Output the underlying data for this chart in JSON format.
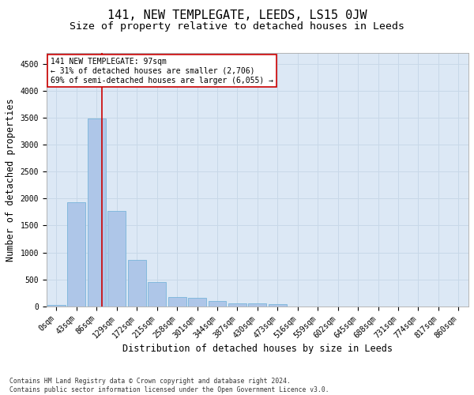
{
  "title": "141, NEW TEMPLEGATE, LEEDS, LS15 0JW",
  "subtitle": "Size of property relative to detached houses in Leeds",
  "xlabel": "Distribution of detached houses by size in Leeds",
  "ylabel": "Number of detached properties",
  "footnote": "Contains HM Land Registry data © Crown copyright and database right 2024.\nContains public sector information licensed under the Open Government Licence v3.0.",
  "bar_labels": [
    "0sqm",
    "43sqm",
    "86sqm",
    "129sqm",
    "172sqm",
    "215sqm",
    "258sqm",
    "301sqm",
    "344sqm",
    "387sqm",
    "430sqm",
    "473sqm",
    "516sqm",
    "559sqm",
    "602sqm",
    "645sqm",
    "688sqm",
    "731sqm",
    "774sqm",
    "817sqm",
    "860sqm"
  ],
  "bar_values": [
    30,
    1930,
    3490,
    1770,
    855,
    445,
    175,
    165,
    95,
    60,
    50,
    35,
    0,
    0,
    0,
    0,
    0,
    0,
    0,
    0,
    0
  ],
  "bar_color": "#aec6e8",
  "bar_edge_color": "#6aaed6",
  "vline_x": 2.27,
  "vline_color": "#cc0000",
  "annotation_line1": "141 NEW TEMPLEGATE: 97sqm",
  "annotation_line2": "← 31% of detached houses are smaller (2,706)",
  "annotation_line3": "69% of semi-detached houses are larger (6,055) →",
  "annotation_box_color": "#cc0000",
  "annotation_bg": "#ffffff",
  "ylim": [
    0,
    4700
  ],
  "yticks": [
    0,
    500,
    1000,
    1500,
    2000,
    2500,
    3000,
    3500,
    4000,
    4500
  ],
  "grid_color": "#c8d8e8",
  "bg_color": "#dce8f5",
  "title_fontsize": 11,
  "subtitle_fontsize": 9.5,
  "axis_label_fontsize": 8.5,
  "tick_fontsize": 7,
  "footnote_fontsize": 5.8
}
